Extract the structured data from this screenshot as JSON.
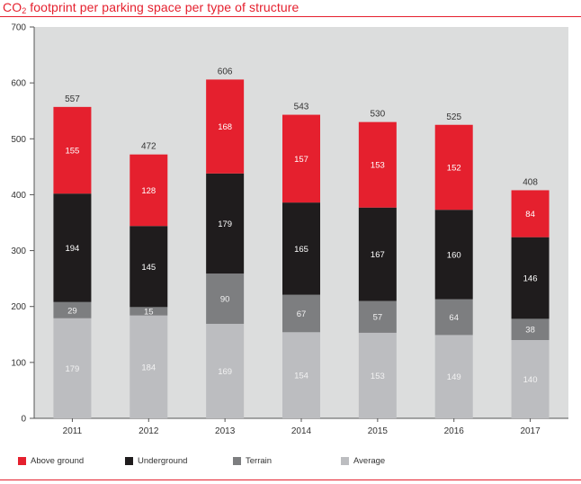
{
  "title": {
    "prefix": "CO",
    "subscript": "2",
    "suffix": " footprint per parking space per type of structure"
  },
  "colors": {
    "above_ground": "#e5202e",
    "underground": "#1f1c1d",
    "terrain": "#7d7e80",
    "average": "#bcbdc0",
    "plot_bg": "#dcdddd",
    "accent": "#e5202e"
  },
  "chart_data": {
    "type": "bar",
    "stacked": true,
    "title": "CO2 footprint per parking space per type of structure",
    "xlabel": "",
    "ylabel": "",
    "ylim": [
      0,
      700
    ],
    "yticks": [
      0,
      100,
      200,
      300,
      400,
      500,
      600,
      700
    ],
    "ytick_labels": [
      "0",
      "100",
      "200",
      "300",
      "400",
      "500",
      "600",
      "700"
    ],
    "categories": [
      "2011",
      "2012",
      "2013",
      "2014",
      "2015",
      "2016",
      "2017"
    ],
    "series": [
      {
        "name": "Average",
        "color": "#bcbdc0",
        "values": [
          179,
          184,
          169,
          154,
          153,
          149,
          140
        ],
        "labels": [
          "179",
          "184",
          "169",
          "154",
          "153",
          "149",
          "140"
        ]
      },
      {
        "name": "Terrain",
        "color": "#7d7e80",
        "values": [
          29,
          15,
          90,
          67,
          57,
          64,
          38
        ],
        "labels": [
          "29",
          "15",
          "90",
          "67",
          "57",
          "64",
          "38"
        ]
      },
      {
        "name": "Underground",
        "color": "#1f1c1d",
        "values": [
          194,
          145,
          179,
          165,
          167,
          160,
          146
        ],
        "labels": [
          "194",
          "145",
          "179",
          "165",
          "167",
          "160",
          "146"
        ]
      },
      {
        "name": "Above ground",
        "color": "#e5202e",
        "values": [
          155,
          128,
          168,
          157,
          153,
          152,
          84
        ],
        "labels": [
          "155",
          "128",
          "168",
          "157",
          "153",
          "152",
          "84"
        ]
      }
    ],
    "totals": [
      557,
      472,
      606,
      543,
      530,
      525,
      408
    ],
    "total_labels": [
      "557",
      "472",
      "606",
      "543",
      "530",
      "525",
      "408"
    ],
    "grid": false,
    "legend_position": "bottom"
  },
  "legend": [
    {
      "label": "Above ground",
      "color": "#e5202e"
    },
    {
      "label": "Underground",
      "color": "#1f1c1d"
    },
    {
      "label": "Terrain",
      "color": "#7d7e80"
    },
    {
      "label": "Average",
      "color": "#bcbdc0"
    }
  ]
}
